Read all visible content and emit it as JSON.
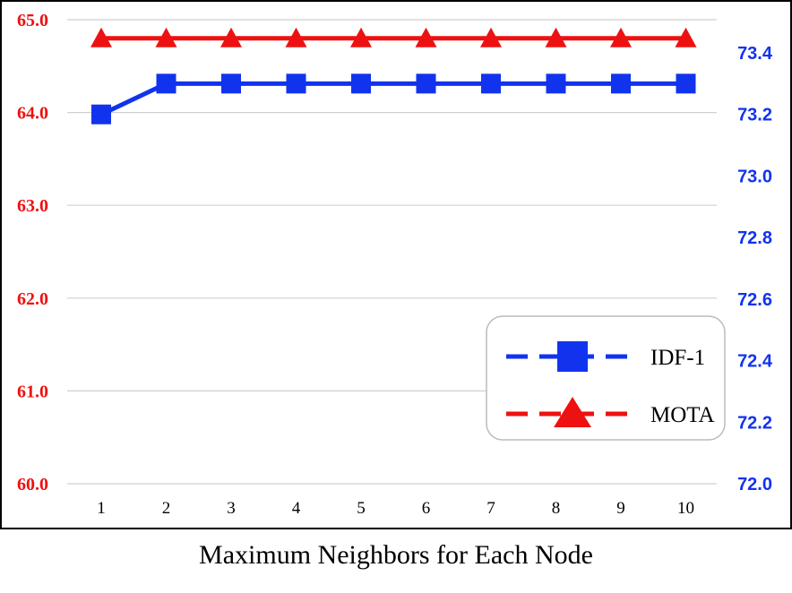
{
  "chart_data": {
    "type": "line",
    "categories": [
      "1",
      "2",
      "3",
      "4",
      "5",
      "6",
      "7",
      "8",
      "9",
      "10"
    ],
    "xlabel": "Maximum Neighbors for Each Node",
    "y_left": {
      "ylim": [
        60.0,
        65.0
      ],
      "ticks": [
        "60.0",
        "61.0",
        "62.0",
        "63.0",
        "64.0",
        "65.0"
      ],
      "color": "#ee1111"
    },
    "y_right": {
      "ylim": [
        72.0,
        73.55
      ],
      "ticks": [
        "72.0",
        "72.2",
        "72.4",
        "72.6",
        "72.8",
        "73.0",
        "73.2",
        "73.4"
      ],
      "color": "#1133ee"
    },
    "series": [
      {
        "name": "IDF-1",
        "axis": "right",
        "color": "#1133ee",
        "marker": "square",
        "values": [
          73.2,
          73.3,
          73.3,
          73.3,
          73.3,
          73.3,
          73.3,
          73.3,
          73.3,
          73.3
        ]
      },
      {
        "name": "MOTA",
        "axis": "left",
        "color": "#ee1111",
        "marker": "triangle",
        "values": [
          64.8,
          64.8,
          64.8,
          64.8,
          64.8,
          64.8,
          64.8,
          64.8,
          64.8,
          64.8
        ]
      }
    ],
    "legend": {
      "position": "bottom-right"
    },
    "grid": true
  }
}
